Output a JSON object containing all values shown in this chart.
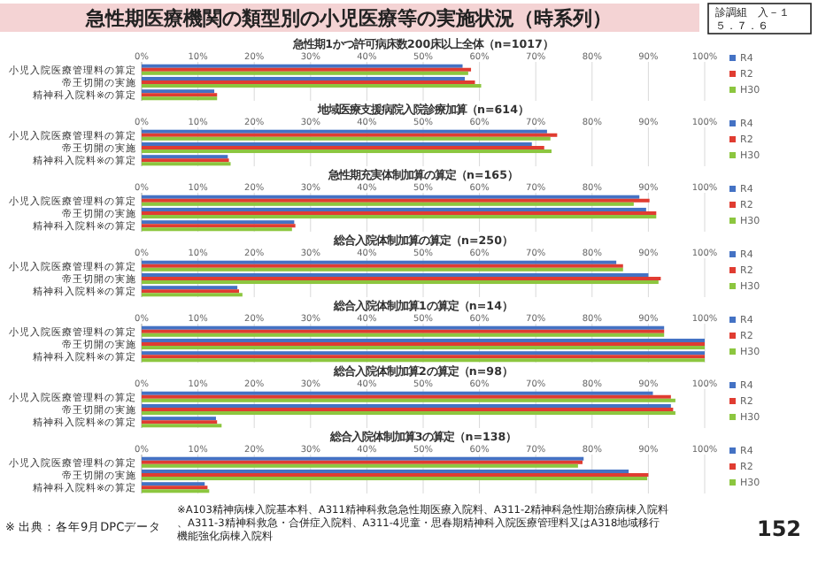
{
  "chart_data": [
    {
      "type": "other",
      "title": "急性期医療機関の類型別の小児医療等の実施状況（時系列）",
      "annotations": [
        "診調組　入－１",
        "５．７．６",
        "※ 出典：各年9月DPCデータ",
        "※A103精神病棟入院基本料、A311精神科救急急性期医療入院料、A311-2精神科急性期治療病棟入院料、A311-3精神科救急・合併症入院料、A311-4児童・思春期精神科入院医療管理料又はA318地域移行機能強化病棟入院料",
        "152"
      ]
    },
    {
      "type": "bar",
      "orientation": "horizontal",
      "title": "急性期1かつ許可病床数200床以上全体（n=1017）",
      "categories": [
        "小児入院医療管理料の算定",
        "帝王切開の実施",
        "精神科入院料※の算定"
      ],
      "series": [
        {
          "name": "R4",
          "color": "#4472c4",
          "values": [
            57,
            57.4,
            12.9
          ]
        },
        {
          "name": "R2",
          "color": "#e03c31",
          "values": [
            58.5,
            59.2,
            13.4
          ]
        },
        {
          "name": "H30",
          "color": "#8cc63f",
          "values": [
            58,
            60.3,
            13.4
          ]
        }
      ],
      "xlim": [
        0,
        100
      ],
      "xticks": [
        {
          "value": 0,
          "label": "0%"
        },
        {
          "value": 10,
          "label": "10%"
        },
        {
          "value": 20,
          "label": "20%"
        },
        {
          "value": 30,
          "label": "30%"
        },
        {
          "value": 40,
          "label": "40%"
        },
        {
          "value": 50,
          "label": "50%"
        },
        {
          "value": 60,
          "label": "60%"
        },
        {
          "value": 70,
          "label": "70%"
        },
        {
          "value": 80,
          "label": "80%"
        },
        {
          "value": 90,
          "label": "90%"
        },
        {
          "value": 100,
          "label": "100%"
        }
      ],
      "grid": "x",
      "legend": "right"
    },
    {
      "type": "bar",
      "orientation": "horizontal",
      "title": "地域医療支援病院入院診療加算（n=614）",
      "categories": [
        "小児入院医療管理料の算定",
        "帝王切開の実施",
        "精神科入院料※の算定"
      ],
      "series": [
        {
          "name": "R4",
          "color": "#4472c4",
          "values": [
            72,
            69.3,
            15.3
          ]
        },
        {
          "name": "R2",
          "color": "#e03c31",
          "values": [
            73.8,
            71.5,
            15.5
          ]
        },
        {
          "name": "H30",
          "color": "#8cc63f",
          "values": [
            72.6,
            72.8,
            15.8
          ]
        }
      ],
      "xlim": [
        0,
        100
      ],
      "xticks": [
        {
          "value": 0,
          "label": "0%"
        },
        {
          "value": 10,
          "label": "10%"
        },
        {
          "value": 20,
          "label": "20%"
        },
        {
          "value": 30,
          "label": "30%"
        },
        {
          "value": 40,
          "label": "40%"
        },
        {
          "value": 50,
          "label": "50%"
        },
        {
          "value": 60,
          "label": "60%"
        },
        {
          "value": 70,
          "label": "70%"
        },
        {
          "value": 80,
          "label": "80%"
        },
        {
          "value": 90,
          "label": "90%"
        },
        {
          "value": 100,
          "label": "100%"
        }
      ],
      "grid": "x",
      "legend": "right"
    },
    {
      "type": "bar",
      "orientation": "horizontal",
      "title": "急性期充実体制加算の算定（n=165）",
      "categories": [
        "小児入院医療管理料の算定",
        "帝王切開の実施",
        "精神科入院料※の算定"
      ],
      "series": [
        {
          "name": "R4",
          "color": "#4472c4",
          "values": [
            88.4,
            89.6,
            27.1
          ]
        },
        {
          "name": "R2",
          "color": "#e03c31",
          "values": [
            90.2,
            91.4,
            27.3
          ]
        },
        {
          "name": "H30",
          "color": "#8cc63f",
          "values": [
            87.4,
            91.4,
            26.7
          ]
        }
      ],
      "xlim": [
        0,
        100
      ],
      "xticks": [
        {
          "value": 0,
          "label": "0%"
        },
        {
          "value": 10,
          "label": "10%"
        },
        {
          "value": 20,
          "label": "20%"
        },
        {
          "value": 30,
          "label": "30%"
        },
        {
          "value": 40,
          "label": "40%"
        },
        {
          "value": 50,
          "label": "50%"
        },
        {
          "value": 60,
          "label": "60%"
        },
        {
          "value": 70,
          "label": "70%"
        },
        {
          "value": 80,
          "label": "80%"
        },
        {
          "value": 90,
          "label": "90%"
        },
        {
          "value": 100,
          "label": "100%"
        }
      ],
      "grid": "x",
      "legend": "right"
    },
    {
      "type": "bar",
      "orientation": "horizontal",
      "title": "総合入院体制加算の算定（n=250）",
      "categories": [
        "小児入院医療管理料の算定",
        "帝王切開の実施",
        "精神科入院料※の算定"
      ],
      "series": [
        {
          "name": "R4",
          "color": "#4472c4",
          "values": [
            84.3,
            90,
            17
          ]
        },
        {
          "name": "R2",
          "color": "#e03c31",
          "values": [
            85.5,
            92.2,
            17.3
          ]
        },
        {
          "name": "H30",
          "color": "#8cc63f",
          "values": [
            85.5,
            91.8,
            17.9
          ]
        }
      ],
      "xlim": [
        0,
        100
      ],
      "xticks": [
        {
          "value": 0,
          "label": "0%"
        },
        {
          "value": 10,
          "label": "10%"
        },
        {
          "value": 20,
          "label": "20%"
        },
        {
          "value": 30,
          "label": "30%"
        },
        {
          "value": 40,
          "label": "40%"
        },
        {
          "value": 50,
          "label": "50%"
        },
        {
          "value": 60,
          "label": "60%"
        },
        {
          "value": 70,
          "label": "70%"
        },
        {
          "value": 80,
          "label": "80%"
        },
        {
          "value": 90,
          "label": "90%"
        },
        {
          "value": 100,
          "label": "100%"
        }
      ],
      "grid": "x",
      "legend": "right"
    },
    {
      "type": "bar",
      "orientation": "horizontal",
      "title": "総合入院体制加算1の算定（n=14）",
      "categories": [
        "小児入院医療管理料の算定",
        "帝王切開の実施",
        "精神科入院料※の算定"
      ],
      "series": [
        {
          "name": "R4",
          "color": "#4472c4",
          "values": [
            92.8,
            100,
            100
          ]
        },
        {
          "name": "R2",
          "color": "#e03c31",
          "values": [
            92.8,
            100,
            100
          ]
        },
        {
          "name": "H30",
          "color": "#8cc63f",
          "values": [
            92.8,
            100,
            100
          ]
        }
      ],
      "xlim": [
        0,
        100
      ],
      "xticks": [
        {
          "value": 0,
          "label": "0%"
        },
        {
          "value": 10,
          "label": "10%"
        },
        {
          "value": 20,
          "label": "20%"
        },
        {
          "value": 30,
          "label": "30%"
        },
        {
          "value": 40,
          "label": "40%"
        },
        {
          "value": 50,
          "label": "50%"
        },
        {
          "value": 60,
          "label": "60%"
        },
        {
          "value": 70,
          "label": "70%"
        },
        {
          "value": 80,
          "label": "80%"
        },
        {
          "value": 90,
          "label": "90%"
        },
        {
          "value": 100,
          "label": "100%"
        }
      ],
      "grid": "x",
      "legend": "right"
    },
    {
      "type": "bar",
      "orientation": "horizontal",
      "title": "総合入院体制加算2の算定（n=98）",
      "categories": [
        "小児入院医療管理料の算定",
        "帝王切開の実施",
        "精神科入院料※の算定"
      ],
      "series": [
        {
          "name": "R4",
          "color": "#4472c4",
          "values": [
            90.8,
            94,
            13.2
          ]
        },
        {
          "name": "R2",
          "color": "#e03c31",
          "values": [
            94,
            94.4,
            13.4
          ]
        },
        {
          "name": "H30",
          "color": "#8cc63f",
          "values": [
            94.8,
            94.8,
            14.2
          ]
        }
      ],
      "xlim": [
        0,
        100
      ],
      "xticks": [
        {
          "value": 0,
          "label": "0%"
        },
        {
          "value": 10,
          "label": "10%"
        },
        {
          "value": 20,
          "label": "20%"
        },
        {
          "value": 30,
          "label": "30%"
        },
        {
          "value": 40,
          "label": "40%"
        },
        {
          "value": 50,
          "label": "50%"
        },
        {
          "value": 60,
          "label": "60%"
        },
        {
          "value": 70,
          "label": "70%"
        },
        {
          "value": 80,
          "label": "80%"
        },
        {
          "value": 90,
          "label": "90%"
        },
        {
          "value": 100,
          "label": "100%"
        }
      ],
      "grid": "x",
      "legend": "right"
    },
    {
      "type": "bar",
      "orientation": "horizontal",
      "title": "総合入院体制加算3の算定（n=138）",
      "categories": [
        "小児入院医療管理料の算定",
        "帝王切開の実施",
        "精神科入院料※の算定"
      ],
      "series": [
        {
          "name": "R4",
          "color": "#4472c4",
          "values": [
            78.5,
            86.5,
            11.2
          ]
        },
        {
          "name": "R2",
          "color": "#e03c31",
          "values": [
            78.3,
            90,
            11.7
          ]
        },
        {
          "name": "H30",
          "color": "#8cc63f",
          "values": [
            77.5,
            89.8,
            12
          ]
        }
      ],
      "xlim": [
        0,
        100
      ],
      "xticks": [
        {
          "value": 0,
          "label": "0%"
        },
        {
          "value": 10,
          "label": "10%"
        },
        {
          "value": 20,
          "label": "20%"
        },
        {
          "value": 30,
          "label": "30%"
        },
        {
          "value": 40,
          "label": "40%"
        },
        {
          "value": 50,
          "label": "50%"
        },
        {
          "value": 60,
          "label": "60%"
        },
        {
          "value": 70,
          "label": "70%"
        },
        {
          "value": 80,
          "label": "80%"
        },
        {
          "value": 90,
          "label": "90%"
        },
        {
          "value": 100,
          "label": "100%"
        }
      ],
      "grid": "x",
      "legend": "right"
    }
  ]
}
